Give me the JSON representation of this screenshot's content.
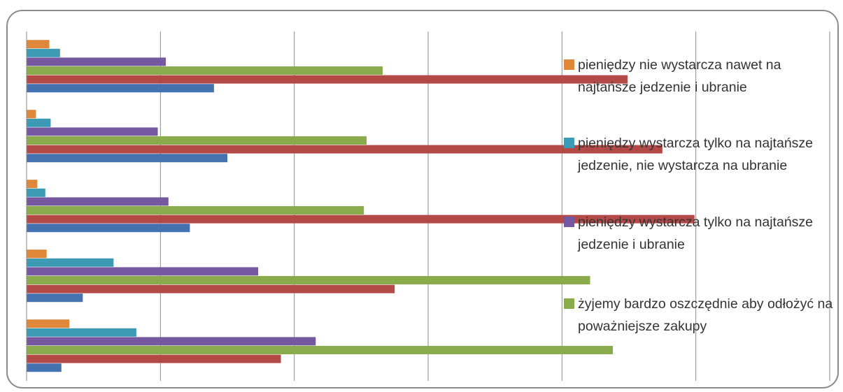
{
  "chart_data": {
    "type": "bar",
    "orientation": "horizontal",
    "categories": [
      null,
      null,
      null,
      null,
      null
    ],
    "series": [
      {
        "name": "pieniędzy nie wystarcza nawet na najtańsze jedzenie i ubranie",
        "color": "#e0883a",
        "values": [
          1.7,
          0.7,
          0.8,
          1.5,
          3.2
        ]
      },
      {
        "name": "pieniędzy wystarcza tylko na najtańsze jedzenie, nie wystarcza na ubranie",
        "color": "#3d9ab5",
        "values": [
          2.5,
          1.8,
          1.4,
          6.5,
          8.2
        ]
      },
      {
        "name": "pieniędzy wystarcza tylko na najtańsze jedzenie i ubranie",
        "color": "#7558a0",
        "values": [
          10.4,
          9.8,
          10.6,
          17.3,
          21.6
        ]
      },
      {
        "name": "żyjemy bardzo oszczędnie aby odłożyć na poważniejsze zakupy",
        "color": "#8aab4b",
        "values": [
          26.6,
          25.4,
          25.2,
          42.1,
          43.8
        ]
      },
      {
        "color": "#b34a48",
        "values": [
          44.9,
          47.5,
          49.9,
          27.5,
          19.0
        ]
      },
      {
        "color": "#4573b0",
        "values": [
          14.0,
          15.0,
          12.2,
          4.2,
          2.6
        ]
      }
    ],
    "xlim": [
      0,
      60
    ],
    "xticks": [
      0,
      10,
      20,
      30,
      40,
      50,
      60
    ],
    "grid": true,
    "legend": "right"
  }
}
